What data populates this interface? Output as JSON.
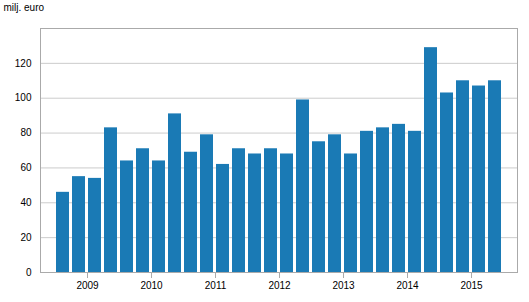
{
  "chart_data": {
    "type": "bar",
    "categories": [
      null,
      "2009",
      null,
      null,
      null,
      "2010",
      null,
      null,
      null,
      "2011",
      null,
      null,
      null,
      "2012",
      null,
      null,
      null,
      "2013",
      null,
      null,
      null,
      "2014",
      null,
      null,
      null,
      "2015",
      null,
      null
    ],
    "values": [
      46,
      55,
      54,
      83,
      64,
      71,
      64,
      91,
      69,
      79,
      62,
      71,
      68,
      71,
      68,
      99,
      75,
      79,
      68,
      81,
      83,
      85,
      81,
      129,
      103,
      110,
      107,
      110
    ],
    "color": "#1a7ab5",
    "ylabel": "milj. euro",
    "ylim": [
      0,
      140
    ],
    "yticks": [
      0,
      20,
      40,
      60,
      80,
      100,
      120
    ],
    "grid": true
  }
}
